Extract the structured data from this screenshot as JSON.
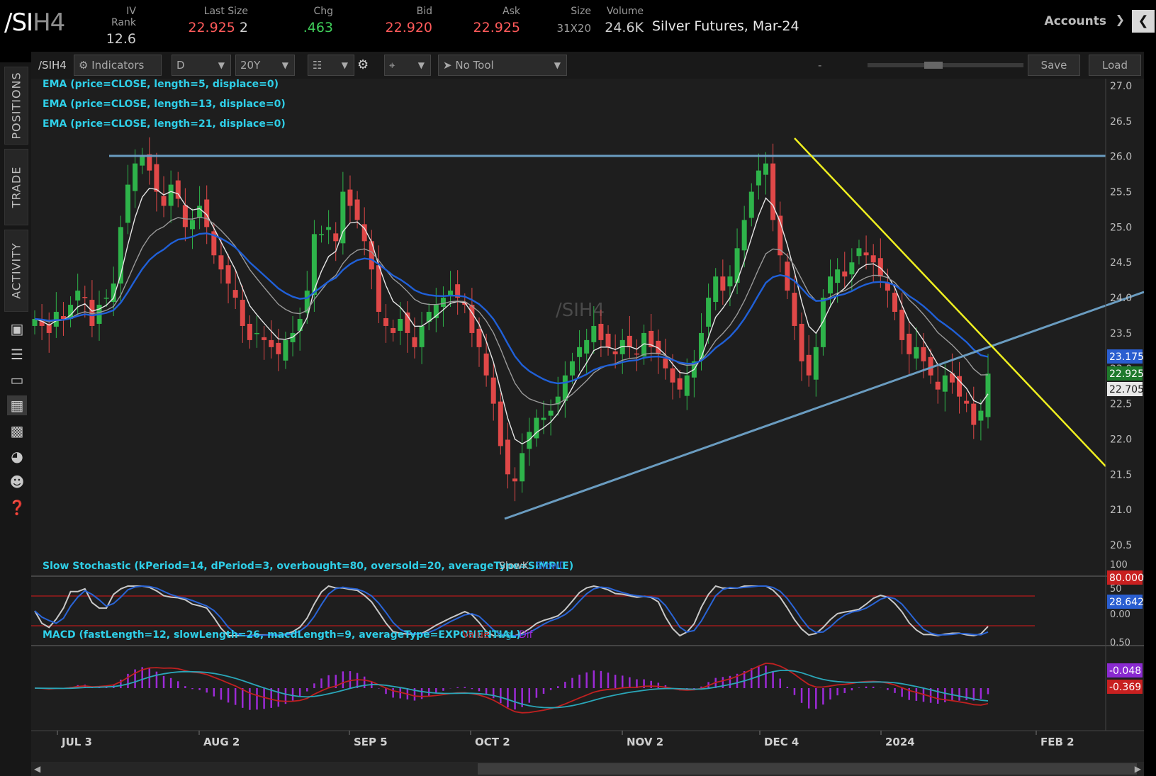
{
  "header": {
    "symbol_a": "/SI",
    "symbol_b": "H4",
    "description": "Silver Futures, Mar-24",
    "accounts_label": "Accounts",
    "fields": [
      {
        "label": "IV Rank",
        "value": "12.6",
        "color": "#d0d0d0"
      },
      {
        "label": "Last Size",
        "value": "22.925",
        "suffix": "2",
        "color": "#ff5a5a"
      },
      {
        "label": "Chg",
        "value": ".463",
        "color": "#3fcf5a"
      },
      {
        "label": "Bid",
        "value": "22.920",
        "color": "#ff5a5a"
      },
      {
        "label": "Ask",
        "value": "22.925",
        "color": "#ff5a5a"
      },
      {
        "label": "Size",
        "value": "31X20",
        "color": "#9a9a9a"
      },
      {
        "label": "Volume",
        "value": "24.6K",
        "color": "#d0d0d0"
      }
    ]
  },
  "leftnav": {
    "tabs": [
      "POSITIONS",
      "TRADE",
      "ACTIVITY"
    ]
  },
  "toolbar": {
    "symbol": "/SIH4",
    "indicators_label": "Indicators",
    "aggregation": "D",
    "timeframe": "20Y",
    "drawing_tool": "No Tool",
    "zoom_minus": "-",
    "zoom_plus": "+",
    "save_label": "Save",
    "load_label": "Load"
  },
  "watermark": "/SIH4",
  "studies": [
    "EMA (price=CLOSE, length=5, displace=0)",
    "EMA (price=CLOSE, length=13, displace=0)",
    "EMA (price=CLOSE, length=21, displace=0)"
  ],
  "stoch": {
    "title": "Slow Stochastic (kPeriod=14, dPeriod=3, overbought=80, oversold=20, averageType=SIMPLE)",
    "slowk_label": "SlowK",
    "slowd_label": "SlowD",
    "badges": [
      "80.000",
      "28.642"
    ]
  },
  "macd": {
    "title": "MACD (fastLength=12, slowLength=26, macdLength=9, averageType=EXPONENTIAL)",
    "value_label": "Value",
    "avg_label": "Avg",
    "dif_label": "Dif",
    "badges": [
      "-0.048",
      "-0.369"
    ]
  },
  "colors": {
    "up": "#2eb34a",
    "down": "#e04848",
    "ema5": "#e6e6e6",
    "ema13": "#9a9a9a",
    "ema21": "#2060d8",
    "trendline": "#6a9cc0",
    "resistance": "#f0f020",
    "stoch_k": "#c8c8c8",
    "stoch_d": "#2a64d6",
    "macd_value": "#c02020",
    "macd_avg": "#2aa6b8",
    "macd_dif": "#9c2ad6"
  },
  "chart_data": {
    "type": "candlestick",
    "symbol": "/SIH4",
    "x_labels": [
      "JUL 3",
      "AUG 2",
      "SEP 5",
      "OCT 2",
      "NOV 2",
      "DEC 4",
      "2024",
      "FEB 2"
    ],
    "y_ticks": [
      "27.0",
      "26.5",
      "26.0",
      "25.5",
      "25.0",
      "24.5",
      "24.0",
      "23.5",
      "23.0",
      "22.5",
      "22.0",
      "21.5",
      "21.0",
      "20.5"
    ],
    "ylim": [
      20.5,
      27.0
    ],
    "price_badges": [
      {
        "value": "23.175",
        "bg": "#2a5ed0",
        "fg": "#ffffff"
      },
      {
        "value": "22.925",
        "bg": "#1f7a2c",
        "fg": "#ffffff"
      },
      {
        "value": "22.705",
        "bg": "#e8e8e8",
        "fg": "#1a1a1a"
      }
    ],
    "close_series": [
      23.7,
      23.6,
      23.5,
      23.8,
      23.7,
      23.9,
      24.1,
      24.0,
      23.6,
      23.9,
      24.0,
      24.2,
      25.0,
      25.6,
      25.9,
      26.0,
      25.8,
      25.5,
      25.3,
      25.6,
      25.4,
      25.0,
      25.1,
      25.3,
      25.0,
      24.6,
      24.4,
      24.2,
      24.0,
      23.6,
      23.4,
      23.5,
      23.4,
      23.3,
      23.2,
      23.4,
      23.5,
      23.7,
      24.1,
      24.9,
      24.9,
      25.0,
      24.8,
      25.5,
      25.3,
      25.1,
      24.8,
      24.4,
      23.8,
      23.6,
      23.5,
      23.7,
      23.5,
      23.3,
      23.6,
      23.8,
      23.9,
      24.0,
      24.1,
      24.0,
      23.9,
      23.5,
      23.3,
      22.9,
      22.5,
      21.9,
      21.5,
      21.4,
      21.8,
      22.1,
      22.3,
      22.3,
      22.4,
      22.6,
      22.9,
      23.1,
      23.3,
      23.4,
      23.6,
      23.4,
      23.3,
      23.2,
      23.4,
      23.3,
      23.2,
      23.5,
      23.3,
      23.2,
      23.0,
      22.8,
      22.7,
      22.9,
      23.1,
      23.5,
      24.0,
      24.3,
      24.1,
      24.3,
      24.7,
      25.1,
      25.5,
      25.8,
      25.9,
      25.1,
      24.6,
      24.1,
      23.6,
      23.1,
      22.9,
      23.3,
      24.0,
      24.3,
      24.4,
      24.3,
      24.5,
      24.7,
      24.6,
      24.5,
      24.3,
      24.1,
      23.8,
      23.4,
      23.2,
      23.3,
      23.1,
      22.9,
      22.7,
      22.9,
      22.8,
      22.6,
      22.5,
      22.2,
      22.4,
      22.925
    ]
  }
}
